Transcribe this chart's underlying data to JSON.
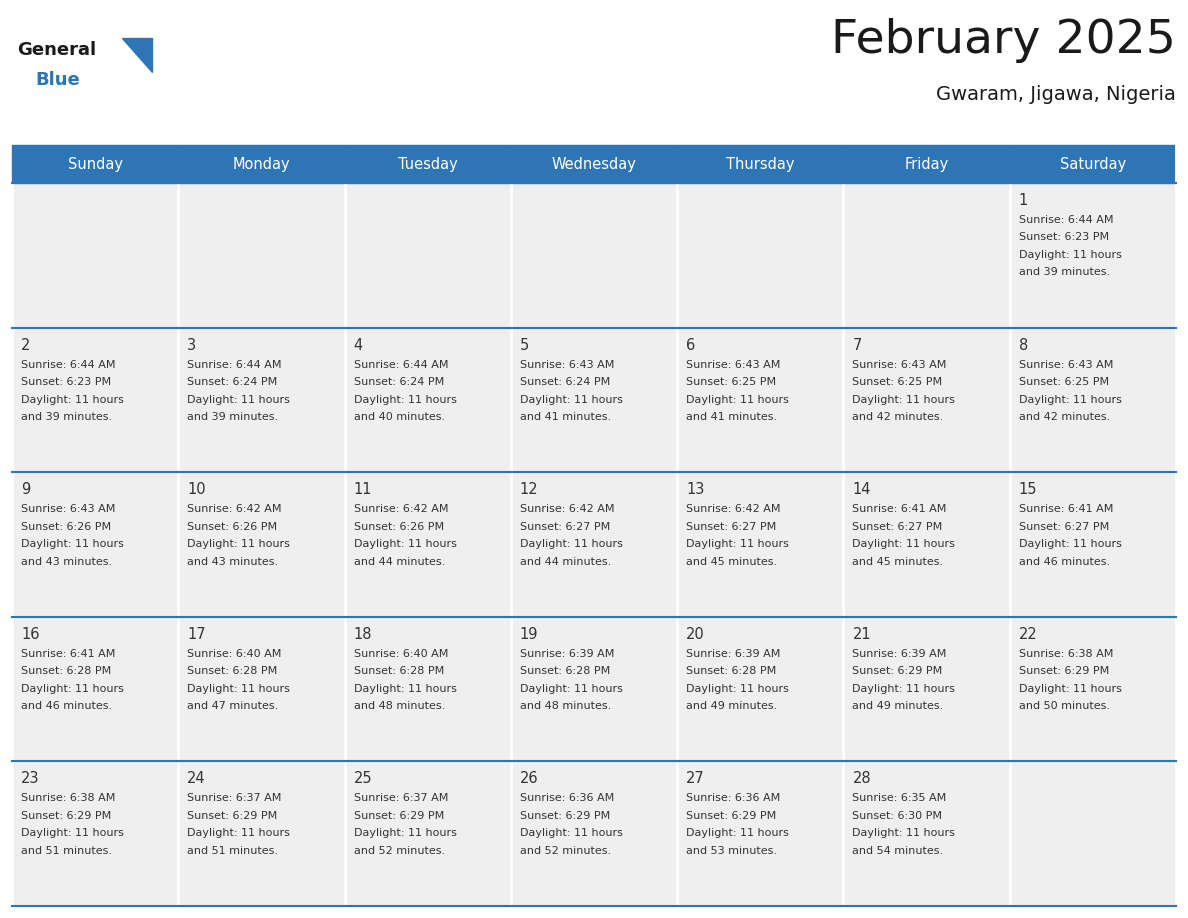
{
  "title": "February 2025",
  "subtitle": "Gwaram, Jigawa, Nigeria",
  "days_of_week": [
    "Sunday",
    "Monday",
    "Tuesday",
    "Wednesday",
    "Thursday",
    "Friday",
    "Saturday"
  ],
  "header_bg": "#2E75B6",
  "header_text": "#FFFFFF",
  "cell_bg": "#EFEFEF",
  "border_color": "#2E75B6",
  "day_number_color": "#333333",
  "info_text_color": "#333333",
  "title_color": "#1a1a1a",
  "logo_general_color": "#1a1a1a",
  "logo_blue_color": "#2E75B6",
  "calendar_data": [
    [
      null,
      null,
      null,
      null,
      null,
      null,
      {
        "day": 1,
        "sunrise": "6:44 AM",
        "sunset": "6:23 PM",
        "daylight_h": "11 hours",
        "daylight_m": "and 39 minutes."
      }
    ],
    [
      {
        "day": 2,
        "sunrise": "6:44 AM",
        "sunset": "6:23 PM",
        "daylight_h": "11 hours",
        "daylight_m": "and 39 minutes."
      },
      {
        "day": 3,
        "sunrise": "6:44 AM",
        "sunset": "6:24 PM",
        "daylight_h": "11 hours",
        "daylight_m": "and 39 minutes."
      },
      {
        "day": 4,
        "sunrise": "6:44 AM",
        "sunset": "6:24 PM",
        "daylight_h": "11 hours",
        "daylight_m": "and 40 minutes."
      },
      {
        "day": 5,
        "sunrise": "6:43 AM",
        "sunset": "6:24 PM",
        "daylight_h": "11 hours",
        "daylight_m": "and 41 minutes."
      },
      {
        "day": 6,
        "sunrise": "6:43 AM",
        "sunset": "6:25 PM",
        "daylight_h": "11 hours",
        "daylight_m": "and 41 minutes."
      },
      {
        "day": 7,
        "sunrise": "6:43 AM",
        "sunset": "6:25 PM",
        "daylight_h": "11 hours",
        "daylight_m": "and 42 minutes."
      },
      {
        "day": 8,
        "sunrise": "6:43 AM",
        "sunset": "6:25 PM",
        "daylight_h": "11 hours",
        "daylight_m": "and 42 minutes."
      }
    ],
    [
      {
        "day": 9,
        "sunrise": "6:43 AM",
        "sunset": "6:26 PM",
        "daylight_h": "11 hours",
        "daylight_m": "and 43 minutes."
      },
      {
        "day": 10,
        "sunrise": "6:42 AM",
        "sunset": "6:26 PM",
        "daylight_h": "11 hours",
        "daylight_m": "and 43 minutes."
      },
      {
        "day": 11,
        "sunrise": "6:42 AM",
        "sunset": "6:26 PM",
        "daylight_h": "11 hours",
        "daylight_m": "and 44 minutes."
      },
      {
        "day": 12,
        "sunrise": "6:42 AM",
        "sunset": "6:27 PM",
        "daylight_h": "11 hours",
        "daylight_m": "and 44 minutes."
      },
      {
        "day": 13,
        "sunrise": "6:42 AM",
        "sunset": "6:27 PM",
        "daylight_h": "11 hours",
        "daylight_m": "and 45 minutes."
      },
      {
        "day": 14,
        "sunrise": "6:41 AM",
        "sunset": "6:27 PM",
        "daylight_h": "11 hours",
        "daylight_m": "and 45 minutes."
      },
      {
        "day": 15,
        "sunrise": "6:41 AM",
        "sunset": "6:27 PM",
        "daylight_h": "11 hours",
        "daylight_m": "and 46 minutes."
      }
    ],
    [
      {
        "day": 16,
        "sunrise": "6:41 AM",
        "sunset": "6:28 PM",
        "daylight_h": "11 hours",
        "daylight_m": "and 46 minutes."
      },
      {
        "day": 17,
        "sunrise": "6:40 AM",
        "sunset": "6:28 PM",
        "daylight_h": "11 hours",
        "daylight_m": "and 47 minutes."
      },
      {
        "day": 18,
        "sunrise": "6:40 AM",
        "sunset": "6:28 PM",
        "daylight_h": "11 hours",
        "daylight_m": "and 48 minutes."
      },
      {
        "day": 19,
        "sunrise": "6:39 AM",
        "sunset": "6:28 PM",
        "daylight_h": "11 hours",
        "daylight_m": "and 48 minutes."
      },
      {
        "day": 20,
        "sunrise": "6:39 AM",
        "sunset": "6:28 PM",
        "daylight_h": "11 hours",
        "daylight_m": "and 49 minutes."
      },
      {
        "day": 21,
        "sunrise": "6:39 AM",
        "sunset": "6:29 PM",
        "daylight_h": "11 hours",
        "daylight_m": "and 49 minutes."
      },
      {
        "day": 22,
        "sunrise": "6:38 AM",
        "sunset": "6:29 PM",
        "daylight_h": "11 hours",
        "daylight_m": "and 50 minutes."
      }
    ],
    [
      {
        "day": 23,
        "sunrise": "6:38 AM",
        "sunset": "6:29 PM",
        "daylight_h": "11 hours",
        "daylight_m": "and 51 minutes."
      },
      {
        "day": 24,
        "sunrise": "6:37 AM",
        "sunset": "6:29 PM",
        "daylight_h": "11 hours",
        "daylight_m": "and 51 minutes."
      },
      {
        "day": 25,
        "sunrise": "6:37 AM",
        "sunset": "6:29 PM",
        "daylight_h": "11 hours",
        "daylight_m": "and 52 minutes."
      },
      {
        "day": 26,
        "sunrise": "6:36 AM",
        "sunset": "6:29 PM",
        "daylight_h": "11 hours",
        "daylight_m": "and 52 minutes."
      },
      {
        "day": 27,
        "sunrise": "6:36 AM",
        "sunset": "6:29 PM",
        "daylight_h": "11 hours",
        "daylight_m": "and 53 minutes."
      },
      {
        "day": 28,
        "sunrise": "6:35 AM",
        "sunset": "6:30 PM",
        "daylight_h": "11 hours",
        "daylight_m": "and 54 minutes."
      },
      null
    ]
  ]
}
